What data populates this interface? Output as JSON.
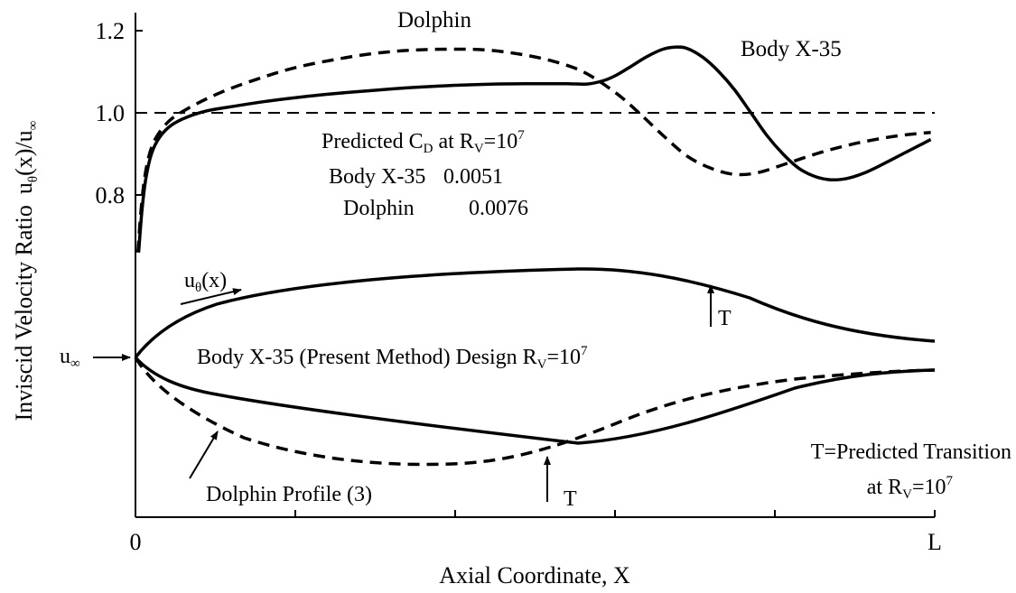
{
  "chart_data": {
    "type": "line",
    "xlabel": "Axial Coordinate, X",
    "ylabel": "Inviscid Velocity Ratio",
    "ylabel_math": {
      "main": "u",
      "sub": "θ",
      "arg": "(x)/u",
      "sub2": "∞"
    },
    "x_ticks": [
      {
        "x": 0,
        "label": "0"
      },
      {
        "x": 0.2,
        "label": ""
      },
      {
        "x": 0.4,
        "label": ""
      },
      {
        "x": 0.6,
        "label": ""
      },
      {
        "x": 0.8,
        "label": ""
      },
      {
        "x": 1,
        "label": "L"
      }
    ],
    "y_ticks": [
      {
        "y": 0.8,
        "label": "0.8"
      },
      {
        "y": 1.0,
        "label": "1.0"
      },
      {
        "y": 1.2,
        "label": "1.2"
      }
    ],
    "xlim": [
      0,
      1
    ],
    "ylim": [
      0.65,
      1.22
    ],
    "reference_line": {
      "y": 1.0,
      "style": "dashed"
    },
    "series": [
      {
        "name": "Body X-35",
        "style": "solid",
        "points": [
          [
            0.004,
            0.66
          ],
          [
            0.008,
            0.76
          ],
          [
            0.013,
            0.84
          ],
          [
            0.02,
            0.9
          ],
          [
            0.03,
            0.94
          ],
          [
            0.045,
            0.97
          ],
          [
            0.065,
            0.99
          ],
          [
            0.09,
            1.005
          ],
          [
            0.12,
            1.015
          ],
          [
            0.16,
            1.027
          ],
          [
            0.2,
            1.037
          ],
          [
            0.25,
            1.047
          ],
          [
            0.3,
            1.055
          ],
          [
            0.35,
            1.062
          ],
          [
            0.4,
            1.067
          ],
          [
            0.45,
            1.07
          ],
          [
            0.5,
            1.071
          ],
          [
            0.54,
            1.071
          ],
          [
            0.565,
            1.07
          ],
          [
            0.585,
            1.078
          ],
          [
            0.6,
            1.09
          ],
          [
            0.62,
            1.113
          ],
          [
            0.64,
            1.137
          ],
          [
            0.66,
            1.155
          ],
          [
            0.675,
            1.16
          ],
          [
            0.69,
            1.157
          ],
          [
            0.71,
            1.135
          ],
          [
            0.73,
            1.1
          ],
          [
            0.75,
            1.055
          ],
          [
            0.77,
            1.0
          ],
          [
            0.79,
            0.945
          ],
          [
            0.81,
            0.9
          ],
          [
            0.83,
            0.865
          ],
          [
            0.85,
            0.845
          ],
          [
            0.87,
            0.837
          ],
          [
            0.89,
            0.84
          ],
          [
            0.91,
            0.852
          ],
          [
            0.93,
            0.87
          ],
          [
            0.96,
            0.9
          ],
          [
            0.98,
            0.92
          ],
          [
            0.995,
            0.935
          ]
        ]
      },
      {
        "name": "Dolphin",
        "style": "dashed",
        "points": [
          [
            0.003,
            0.66
          ],
          [
            0.006,
            0.74
          ],
          [
            0.01,
            0.82
          ],
          [
            0.015,
            0.88
          ],
          [
            0.022,
            0.925
          ],
          [
            0.032,
            0.958
          ],
          [
            0.045,
            0.985
          ],
          [
            0.065,
            1.01
          ],
          [
            0.09,
            1.035
          ],
          [
            0.12,
            1.06
          ],
          [
            0.16,
            1.087
          ],
          [
            0.2,
            1.11
          ],
          [
            0.25,
            1.13
          ],
          [
            0.3,
            1.145
          ],
          [
            0.35,
            1.153
          ],
          [
            0.4,
            1.155
          ],
          [
            0.44,
            1.153
          ],
          [
            0.48,
            1.143
          ],
          [
            0.52,
            1.127
          ],
          [
            0.56,
            1.1
          ],
          [
            0.6,
            1.05
          ],
          [
            0.63,
            1.0
          ],
          [
            0.66,
            0.945
          ],
          [
            0.69,
            0.895
          ],
          [
            0.72,
            0.865
          ],
          [
            0.75,
            0.85
          ],
          [
            0.78,
            0.855
          ],
          [
            0.82,
            0.88
          ],
          [
            0.86,
            0.905
          ],
          [
            0.9,
            0.925
          ],
          [
            0.94,
            0.94
          ],
          [
            0.97,
            0.948
          ],
          [
            0.995,
            0.952
          ]
        ]
      }
    ],
    "annotations": {
      "dolphin_label": "Dolphin",
      "body_label": "Body X-35",
      "cd_title": {
        "prefix": "Predicted C",
        "sub": "D",
        "mid": " at R",
        "sub2": "V",
        "mid2": "=10",
        "sup": "7"
      },
      "cd_rows": [
        {
          "name": "Body X-35",
          "value": "0.0051"
        },
        {
          "name": "Dolphin",
          "value": "0.0076"
        }
      ]
    }
  },
  "profile_diagram": {
    "u_theta_label": {
      "main": "u",
      "sub": "θ",
      "arg": "(x)"
    },
    "u_inf_label": {
      "main": "u",
      "sub": "∞"
    },
    "transition_mark": "T",
    "design_label": {
      "prefix": "Body X-35 (Present Method) Design R",
      "sub": "V",
      "mid": "=10",
      "sup": "7"
    },
    "dolphin_profile_label": "Dolphin Profile (3)",
    "transition_legend": {
      "line1": "T=Predicted Transition",
      "line2_prefix": "at R",
      "line2_sub": "V",
      "line2_mid": "=10",
      "line2_sup": "7"
    }
  }
}
